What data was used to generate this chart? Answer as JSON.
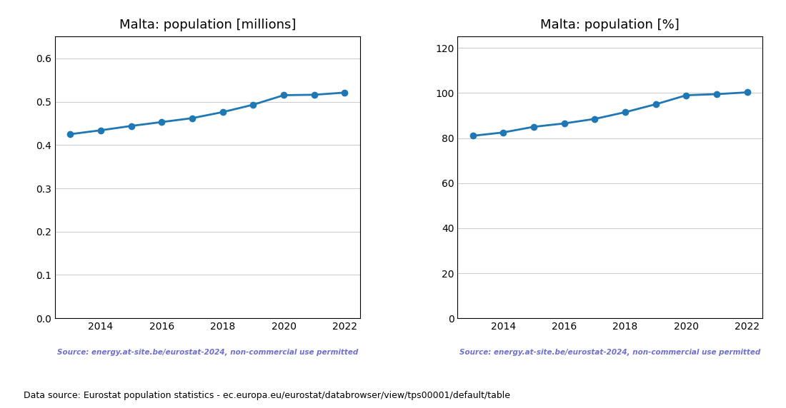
{
  "years": [
    2013,
    2014,
    2015,
    2016,
    2017,
    2018,
    2019,
    2020,
    2021,
    2022
  ],
  "pop_millions": [
    0.425,
    0.434,
    0.444,
    0.453,
    0.462,
    0.476,
    0.493,
    0.515,
    0.516,
    0.521
  ],
  "pop_percent": [
    81.0,
    82.5,
    85.0,
    86.5,
    88.5,
    91.5,
    95.0,
    99.0,
    99.5,
    100.3
  ],
  "title_millions": "Malta: population [millions]",
  "title_percent": "Malta: population [%]",
  "ylim_millions": [
    0.0,
    0.65
  ],
  "yticks_millions": [
    0.0,
    0.1,
    0.2,
    0.3,
    0.4,
    0.5,
    0.6
  ],
  "ylim_percent": [
    0,
    125
  ],
  "yticks_percent": [
    0,
    20,
    40,
    60,
    80,
    100,
    120
  ],
  "source_text": "Source: energy.at-site.be/eurostat-2024, non-commercial use permitted",
  "footer_text": "Data source: Eurostat population statistics - ec.europa.eu/eurostat/databrowser/view/tps00001/default/table",
  "line_color": "#1f77b4",
  "marker_color": "#1f77b4",
  "source_color": "#7070cc",
  "footer_color": "#000000",
  "grid_color": "#cccccc",
  "background_color": "#ffffff"
}
